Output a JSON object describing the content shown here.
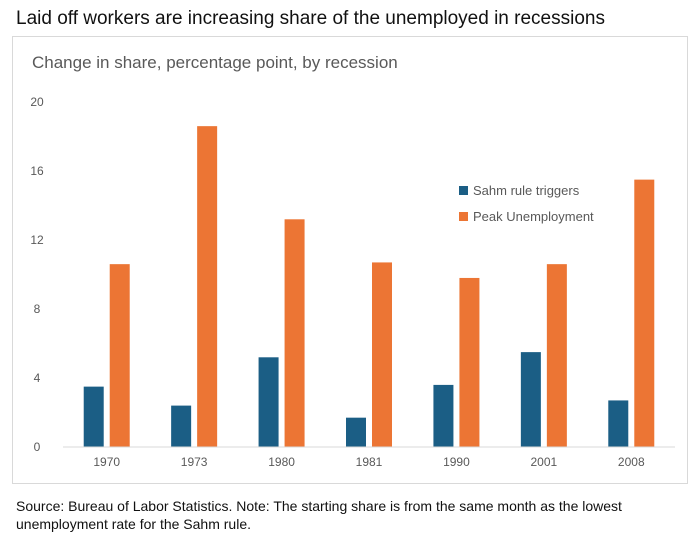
{
  "headline": "Laid off workers are increasing share of the unemployed in recessions",
  "source_note": "Source: Bureau of Labor Statistics. Note: The starting share is from the same month as the lowest unemployment rate for the Sahm rule.",
  "chart_data": {
    "type": "bar",
    "title": "Change in share, percentage point, by recession",
    "xlabel": "",
    "ylabel": "",
    "categories": [
      "1970",
      "1973",
      "1980",
      "1981",
      "1990",
      "2001",
      "2008"
    ],
    "series": [
      {
        "name": "Sahm rule triggers",
        "color": "#1b5e85",
        "values": [
          3.5,
          2.4,
          5.2,
          1.7,
          3.6,
          5.5,
          2.7
        ]
      },
      {
        "name": "Peak Unemployment",
        "color": "#ec7534",
        "values": [
          10.6,
          18.6,
          13.2,
          10.7,
          9.8,
          10.6,
          15.5
        ]
      }
    ],
    "ylim": [
      0,
      20
    ],
    "yticks": [
      "0",
      "4",
      "8",
      "12",
      "16",
      "20"
    ],
    "grid": false,
    "legend": "right"
  }
}
